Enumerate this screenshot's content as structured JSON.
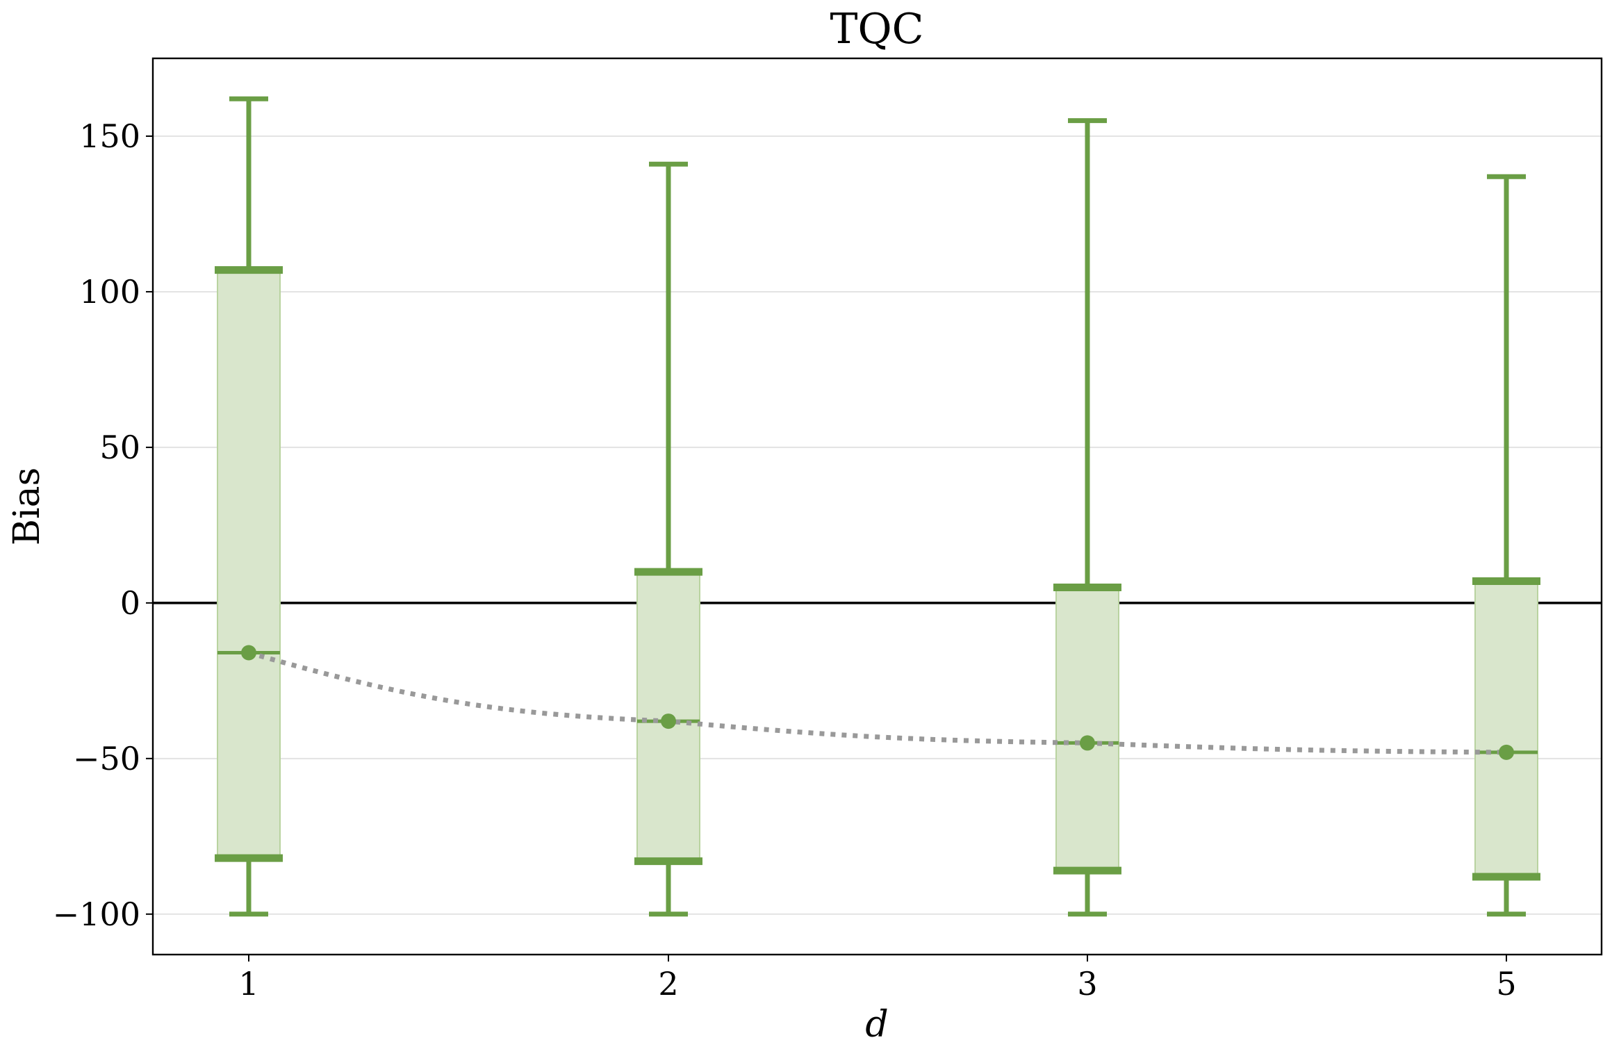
{
  "chart_data": {
    "type": "box",
    "title": "TQC",
    "xlabel": "d",
    "ylabel": "Bias",
    "categories": [
      "1",
      "2",
      "3",
      "5"
    ],
    "ylim": [
      -113,
      175
    ],
    "yticks": [
      150,
      100,
      50,
      0,
      -50,
      -100
    ],
    "ytick_labels": [
      "150",
      "100",
      "50",
      "0",
      "−50",
      "−100"
    ],
    "grid": true,
    "zero_line": 0,
    "boxes": [
      {
        "category": "1",
        "whisker_low": -100,
        "q1": -82,
        "q3": 107,
        "whisker_high": 162,
        "median": -16
      },
      {
        "category": "2",
        "whisker_low": -100,
        "q1": -83,
        "q3": 10,
        "whisker_high": 141,
        "median": -38
      },
      {
        "category": "3",
        "whisker_low": -100,
        "q1": -86,
        "q3": 5,
        "whisker_high": 155,
        "median": -45
      },
      {
        "category": "5",
        "whisker_low": -100,
        "q1": -88,
        "q3": 7,
        "whisker_high": 137,
        "median": -48
      }
    ],
    "colors": {
      "box_fill": "#d9e6cc",
      "box_edge": "#b9d3a0",
      "whisker": "#6a9e45",
      "median_line": "#999999",
      "zero_line": "#000000",
      "grid": "#e3e3e3"
    }
  }
}
